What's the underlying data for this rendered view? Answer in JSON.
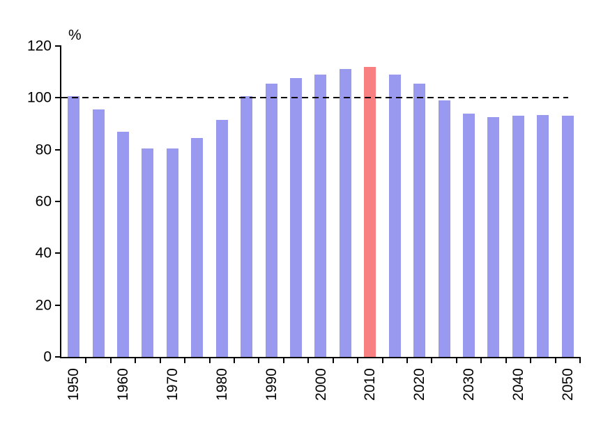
{
  "chart_data": {
    "type": "bar",
    "title": "",
    "unit_label": "%",
    "categories": [
      "1950",
      "1955",
      "1960",
      "1965",
      "1970",
      "1975",
      "1980",
      "1985",
      "1990",
      "1995",
      "2000",
      "2005",
      "2010",
      "2015",
      "2020",
      "2025",
      "2030",
      "2035",
      "2040",
      "2045",
      "2050"
    ],
    "values": [
      100.5,
      95.5,
      87,
      80.5,
      80.5,
      84.5,
      91.5,
      100.5,
      105.5,
      107.5,
      109,
      111,
      112,
      109,
      105.5,
      99,
      94,
      92.5,
      93,
      93.5,
      93
    ],
    "highlight_category": "2010",
    "bar_color": "#9999F0",
    "highlight_color": "#F98080",
    "axis_color": "#000000",
    "ylim": [
      0,
      120
    ],
    "yticks": [
      0,
      20,
      40,
      60,
      80,
      100,
      120
    ],
    "x_tick_labels": [
      "1950",
      "1960",
      "1970",
      "1980",
      "1990",
      "2000",
      "2010",
      "2020",
      "2030",
      "2040",
      "2050"
    ],
    "xlabel": "",
    "ylabel": "%",
    "reference_line": {
      "value": 100,
      "style": "dashed",
      "color": "#000000"
    },
    "grid": false,
    "legend_position": "none"
  }
}
